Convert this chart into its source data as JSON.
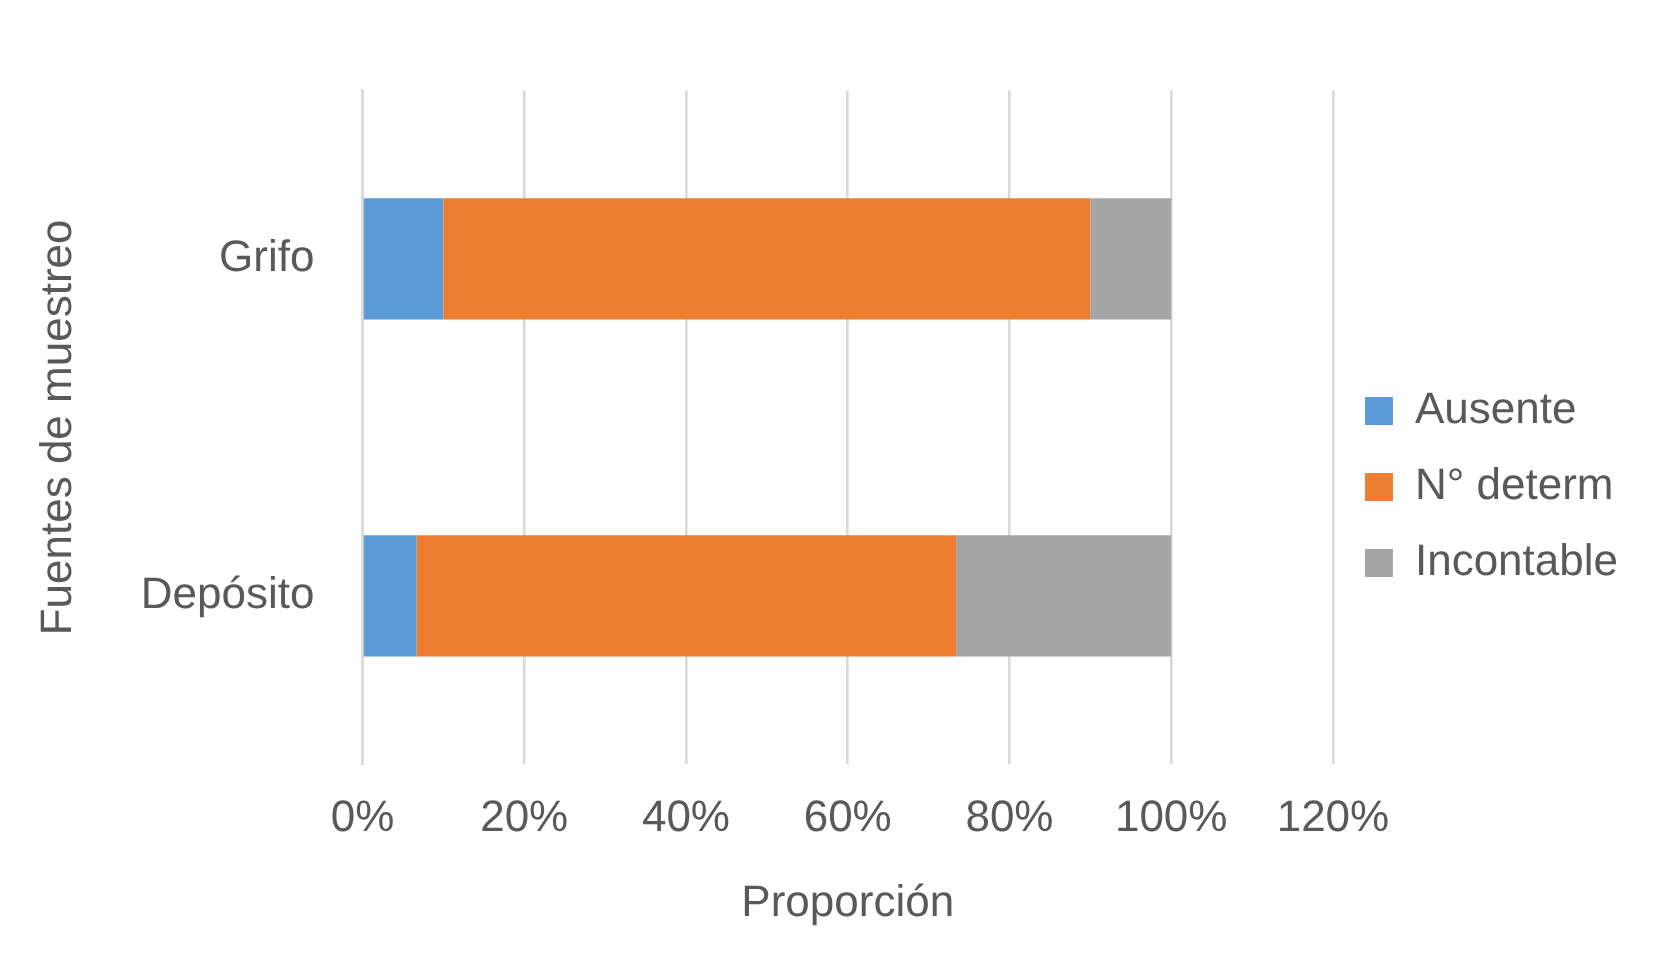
{
  "chart_data": {
    "type": "bar",
    "orientation": "horizontal",
    "stacked": true,
    "xlabel": "Proporción",
    "ylabel": "Fuentes de muestreo",
    "categories": [
      "Grifo",
      "Depósito"
    ],
    "series": [
      {
        "name": "Ausente",
        "color": "#5b9bd5",
        "values": [
          10,
          6.7
        ]
      },
      {
        "name": "N° determ",
        "color": "#ed7d31",
        "values": [
          80,
          66.7
        ]
      },
      {
        "name": "Incontable",
        "color": "#a5a5a5",
        "values": [
          10,
          26.6
        ]
      }
    ],
    "xlim": [
      0,
      120
    ],
    "xticks": [
      {
        "value": 0,
        "label": "0%"
      },
      {
        "value": 20,
        "label": "20%"
      },
      {
        "value": 40,
        "label": "40%"
      },
      {
        "value": 60,
        "label": "60%"
      },
      {
        "value": 80,
        "label": "80%"
      },
      {
        "value": 100,
        "label": "100%"
      },
      {
        "value": 120,
        "label": "120%"
      }
    ],
    "grid": "x",
    "legend": "right"
  }
}
